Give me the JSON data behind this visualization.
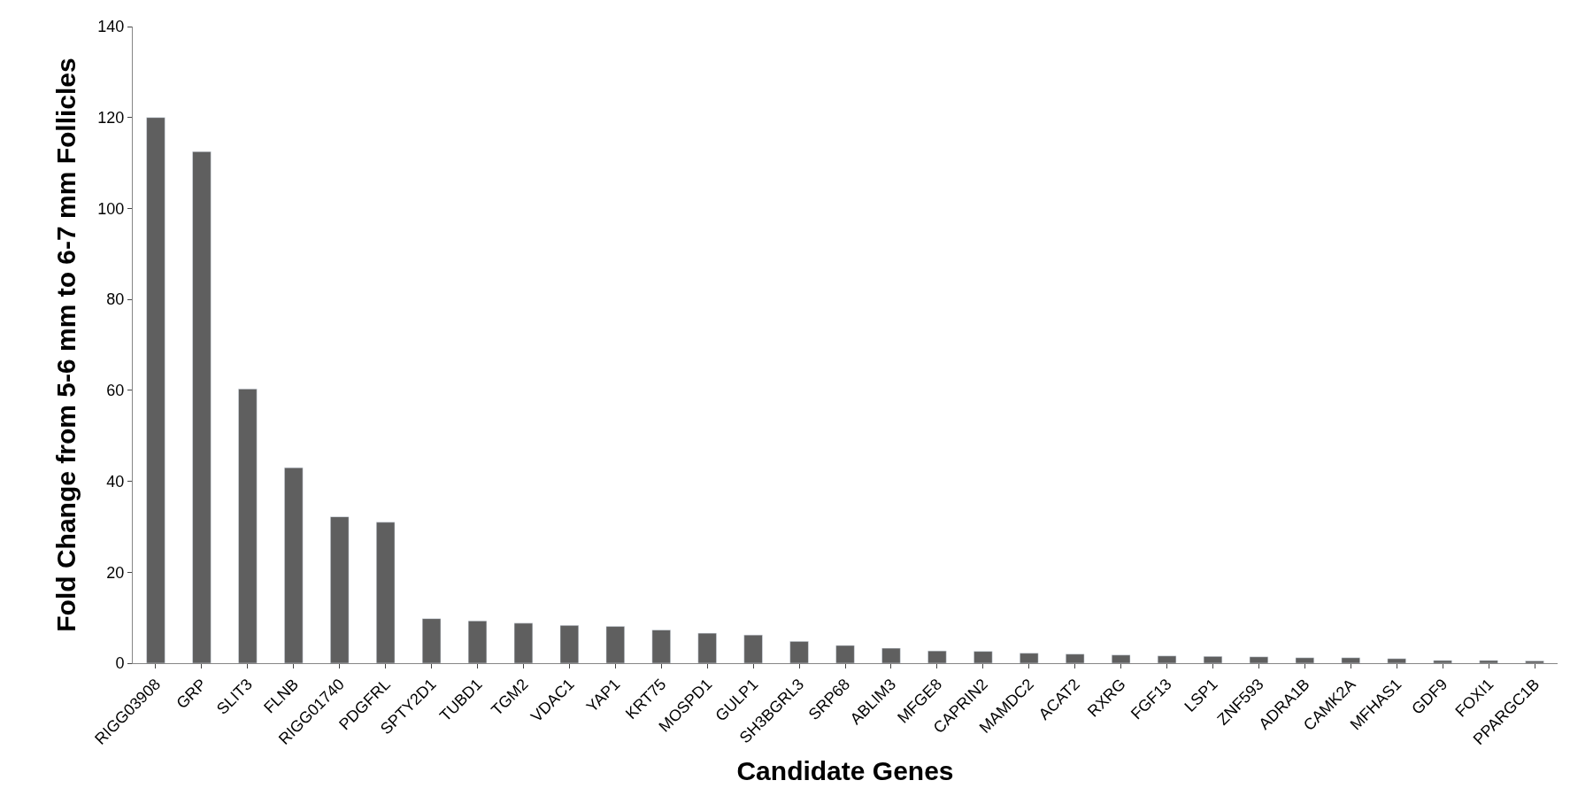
{
  "chart_data": {
    "type": "bar",
    "xlabel": "Candidate Genes",
    "ylabel": "Fold Change from 5-6 mm to 6-7 mm Follicles",
    "categories": [
      "RIGG03908",
      "GRP",
      "SLIT3",
      "FLNB",
      "RIGG01740",
      "PDGFRL",
      "SPTY2D1",
      "TUBD1",
      "TGM2",
      "VDAC1",
      "YAP1",
      "KRT75",
      "MOSPD1",
      "GULP1",
      "SH3BGRL3",
      "SRP68",
      "ABLIM3",
      "MFGE8",
      "CAPRIN2",
      "MAMDC2",
      "ACAT2",
      "RXRG",
      "FGF13",
      "LSP1",
      "ZNF593",
      "ADRA1B",
      "CAMK2A",
      "MFHAS1",
      "GDF9",
      "FOXI1",
      "PPARGC1B"
    ],
    "values": [
      120,
      112.5,
      60.3,
      43,
      32.2,
      31,
      9.8,
      9.3,
      8.8,
      8.3,
      8.1,
      7.3,
      6.6,
      6.2,
      4.8,
      3.9,
      3.3,
      2.7,
      2.6,
      2.2,
      2.0,
      1.8,
      1.6,
      1.5,
      1.4,
      1.2,
      1.2,
      1.0,
      0.6,
      0.6,
      0.5
    ],
    "color": "#5f5f5f",
    "ylim": [
      0,
      140
    ],
    "yticks": [
      0,
      20,
      40,
      60,
      80,
      100,
      120,
      140
    ]
  }
}
